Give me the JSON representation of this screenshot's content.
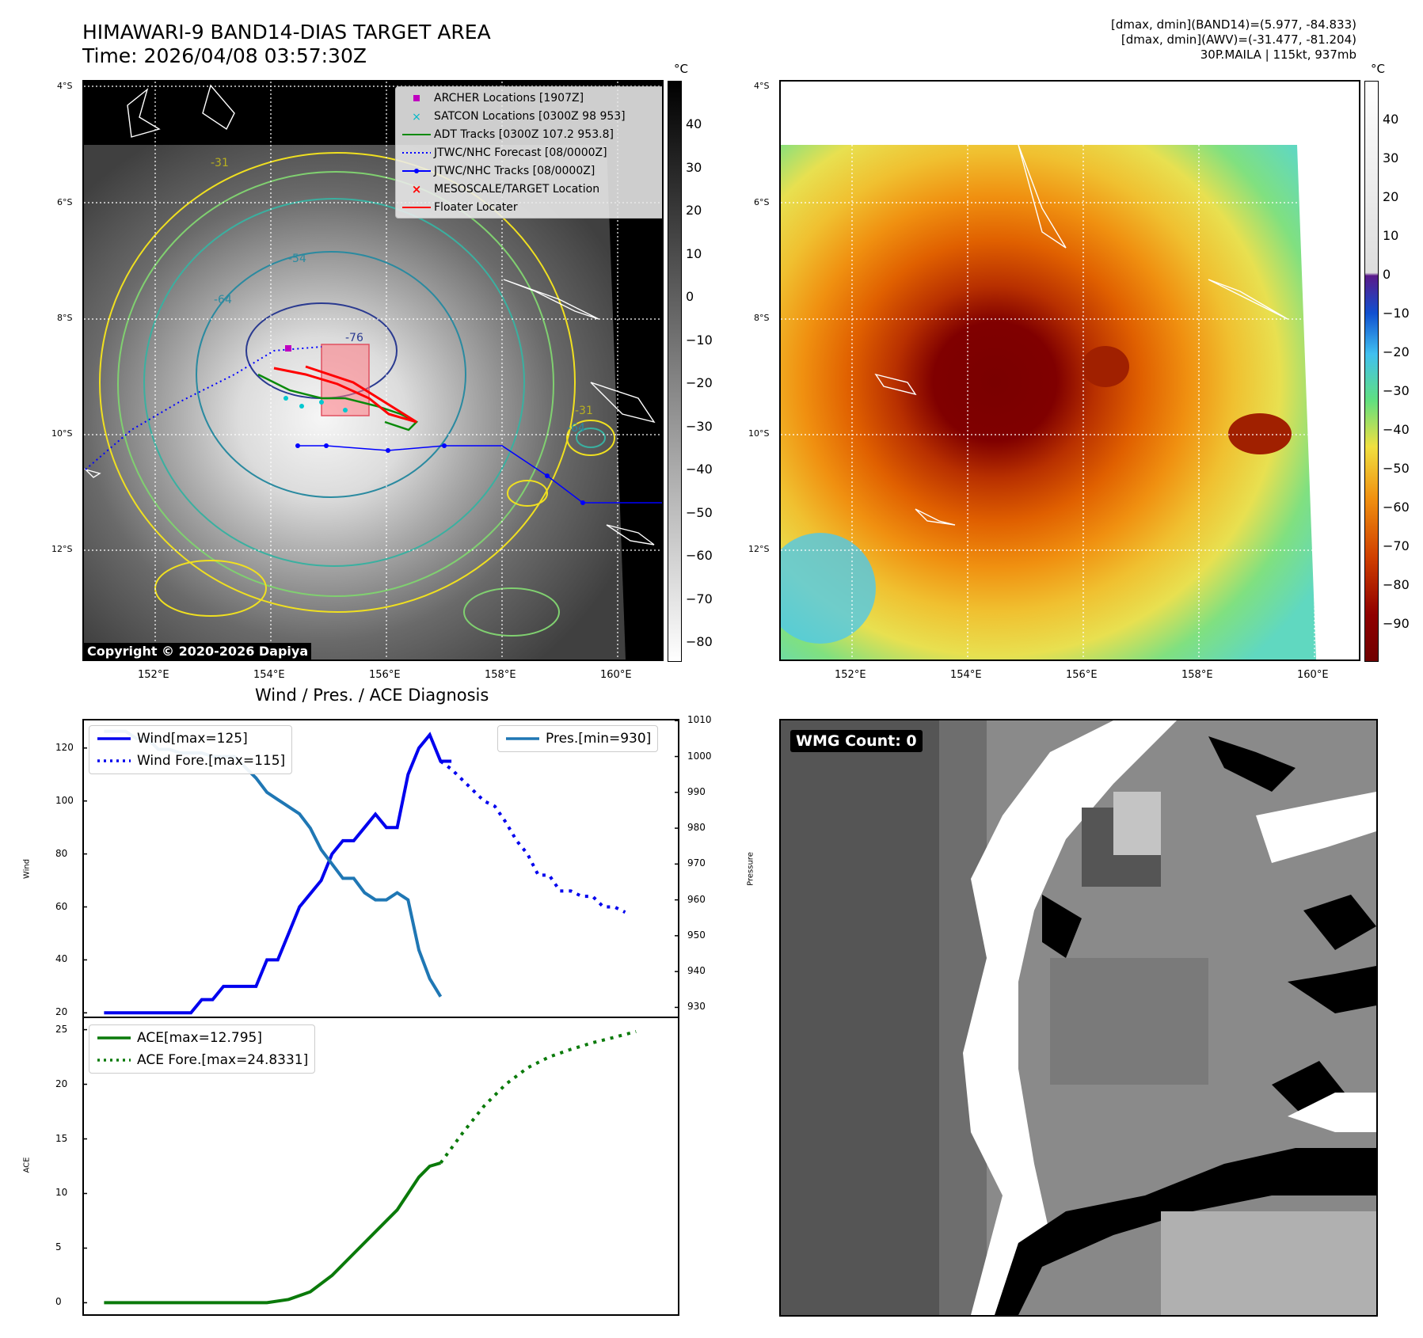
{
  "header": {
    "title_line1": "HIMAWARI-9 BAND14-DIAS TARGET AREA",
    "title_line2": "Time: 2026/04/08 03:57:30Z",
    "info_line1": "[dmax, dmin](BAND14)=(5.977, -84.833)",
    "info_line2": "[dmax, dmin](AWV)=(-31.477, -81.204)",
    "info_line3": "30P.MAILA | 115kt, 937mb"
  },
  "map_axes": {
    "lat_labels": [
      "4°S",
      "6°S",
      "8°S",
      "10°S",
      "12°S"
    ],
    "lon_labels": [
      "152°E",
      "154°E",
      "156°E",
      "158°E",
      "160°E"
    ]
  },
  "colorbar_ir": {
    "unit": "°C",
    "ticks": [
      "40",
      "30",
      "20",
      "10",
      "0",
      "−10",
      "−20",
      "−30",
      "−40",
      "−50",
      "−60",
      "−70",
      "−80"
    ]
  },
  "colorbar_awv": {
    "unit": "°C",
    "ticks": [
      "40",
      "30",
      "20",
      "10",
      "0",
      "−10",
      "−20",
      "−30",
      "−40",
      "−50",
      "−60",
      "−70",
      "−80",
      "−90"
    ]
  },
  "copyright": "Copyright © 2020-2026 Dapiya",
  "legend": {
    "items": [
      {
        "label": "ARCHER Locations [1907Z]",
        "color": "#c000c0"
      },
      {
        "label": "SATCON Locations [0300Z 98 953]",
        "color": "#00b8c8"
      },
      {
        "label": "ADT Tracks [0300Z 107.2 953.8]",
        "color": "#0a8a0a"
      },
      {
        "label": "JTWC/NHC Forecast [08/0000Z]",
        "color": "#0000ff"
      },
      {
        "label": "JTWC/NHC Tracks [08/0000Z]",
        "color": "#0000ff"
      },
      {
        "label": "MESOSCALE/TARGET Location",
        "color": "#ff0000"
      },
      {
        "label": "Floater Locater",
        "color": "#ff0000"
      }
    ]
  },
  "contour_labels": [
    "-31",
    "-54",
    "-64",
    "-76",
    "-31",
    "-64"
  ],
  "wmg": {
    "label": "WMG Count: 0"
  },
  "diagnosis": {
    "title": "Wind / Pres. / ACE Diagnosis"
  },
  "chart_data": [
    {
      "type": "line",
      "title": "Wind / Pres. / ACE Diagnosis",
      "ylabel": "Wind",
      "y2label": "Pressure",
      "ylim": [
        18,
        131
      ],
      "y2lim": [
        927,
        1010.5
      ],
      "xlim": [
        0,
        55
      ],
      "yticks": [
        "120",
        "100",
        "80",
        "60",
        "40",
        "20"
      ],
      "y2ticks": [
        "1010",
        "1000",
        "990",
        "980",
        "970",
        "960",
        "950",
        "940",
        "930"
      ],
      "series": [
        {
          "name": "Wind[max=125]",
          "style": "solid",
          "color": "#0000ee",
          "x": [
            2,
            3,
            4,
            5,
            6,
            7,
            8,
            9,
            10,
            11,
            12,
            13,
            14,
            15,
            16,
            17,
            18,
            19,
            20,
            21,
            22,
            23,
            24,
            25,
            26,
            27,
            28,
            29,
            30,
            31,
            32,
            33,
            34
          ],
          "values": [
            20,
            20,
            20,
            20,
            20,
            20,
            20,
            20,
            20,
            25,
            25,
            30,
            30,
            30,
            30,
            40,
            40,
            50,
            60,
            65,
            70,
            80,
            85,
            85,
            90,
            95,
            90,
            90,
            110,
            120,
            125,
            115,
            115
          ]
        },
        {
          "name": "Wind Fore.[max=115]",
          "style": "dotted",
          "color": "#0000ee",
          "x": [
            33,
            34,
            35,
            36,
            37,
            38,
            39,
            40,
            41,
            42,
            43,
            44,
            45,
            46,
            47,
            48,
            49,
            50
          ],
          "values": [
            115,
            112,
            108,
            104,
            100,
            98,
            92,
            85,
            80,
            72,
            72,
            66,
            66,
            64,
            64,
            60,
            60,
            58
          ]
        },
        {
          "name": "Pres.[min=930]",
          "style": "solid",
          "color": "#1f77b4",
          "axis": "right",
          "x": [
            2,
            3,
            4,
            5,
            6,
            7,
            8,
            9,
            10,
            11,
            12,
            13,
            14,
            15,
            16,
            17,
            18,
            19,
            20,
            21,
            22,
            23,
            24,
            25,
            26,
            27,
            28,
            29,
            30,
            31,
            32,
            33
          ],
          "values": [
            1007,
            1007,
            1007,
            1005,
            1005,
            1002,
            1002,
            1001,
            1001,
            1001,
            1000,
            1000,
            1000,
            997,
            994,
            990,
            988,
            986,
            984,
            980,
            974,
            970,
            966,
            966,
            962,
            960,
            960,
            962,
            960,
            946,
            938,
            933
          ]
        }
      ]
    },
    {
      "type": "line",
      "ylabel": "ACE",
      "ylim": [
        -1.2,
        26.2
      ],
      "xlim": [
        0,
        55
      ],
      "yticks": [
        "25",
        "20",
        "15",
        "10",
        "5",
        "0"
      ],
      "series": [
        {
          "name": "ACE[max=12.795]",
          "style": "solid",
          "color": "#0a7a0a",
          "x": [
            2,
            6,
            10,
            14,
            17,
            19,
            21,
            23,
            25,
            27,
            29,
            30,
            31,
            32,
            33
          ],
          "values": [
            0,
            0,
            0,
            0,
            0,
            0.3,
            1.0,
            2.5,
            4.5,
            6.5,
            8.5,
            10.0,
            11.5,
            12.5,
            12.795
          ]
        },
        {
          "name": "ACE Fore.[max=24.8331]",
          "style": "dotted",
          "color": "#0a7a0a",
          "x": [
            33,
            35,
            37,
            39,
            41,
            43,
            45,
            47,
            49,
            51
          ],
          "values": [
            12.795,
            15.5,
            18.0,
            20.0,
            21.5,
            22.5,
            23.2,
            23.8,
            24.3,
            24.8331
          ]
        }
      ]
    }
  ]
}
